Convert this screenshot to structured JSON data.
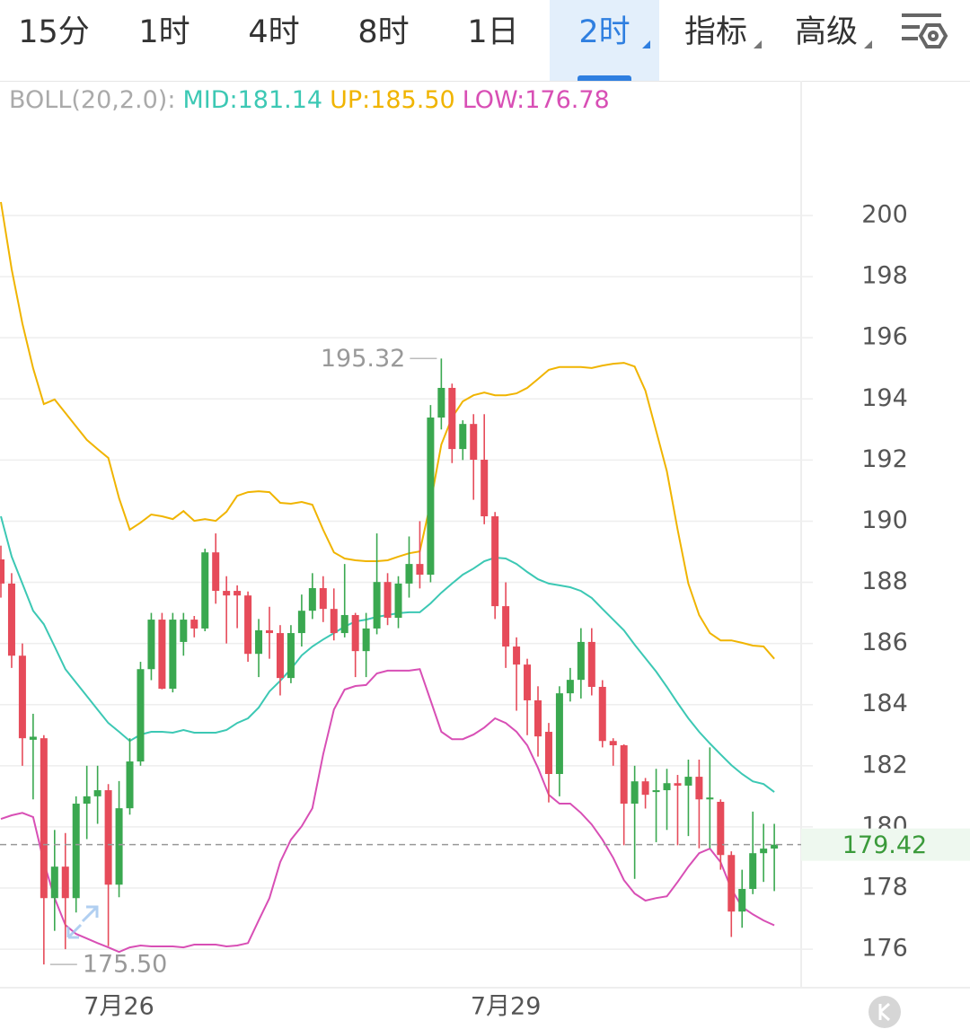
{
  "tabs": [
    "15分",
    "1时",
    "4时",
    "8时",
    "1日",
    "2时",
    "指标",
    "高级"
  ],
  "active_tab": 5,
  "dropdown_tabs": [
    5,
    6,
    7
  ],
  "chart_data": {
    "type": "candlestick",
    "indicator": "BOLL(20,2.0):",
    "categories": [
      null,
      null,
      null,
      null,
      null,
      null,
      null,
      null,
      null,
      null,
      null,
      "7月26",
      null,
      null,
      null,
      null,
      null,
      null,
      null,
      null,
      null,
      null,
      null,
      null,
      null,
      null,
      null,
      null,
      null,
      null,
      null,
      null,
      null,
      null,
      null,
      null,
      null,
      null,
      null,
      null,
      null,
      null,
      null,
      null,
      null,
      null,
      null,
      "7月29",
      null,
      null,
      null,
      null,
      null,
      null,
      null,
      null,
      null,
      null,
      null,
      null,
      null,
      null,
      null,
      null,
      null,
      null,
      null,
      null,
      null,
      null,
      null,
      null,
      null
    ],
    "open": [
      188.75,
      187.96,
      185.6,
      182.85,
      182.9,
      177.67,
      178.7,
      177.67,
      180.76,
      181.0,
      181.2,
      178.11,
      180.61,
      182.14,
      185.16,
      186.78,
      184.52,
      186.05,
      186.78,
      186.49,
      188.98,
      187.72,
      187.72,
      187.57,
      185.66,
      186.43,
      186.34,
      184.87,
      186.34,
      187.07,
      187.81,
      187.13,
      186.34,
      186.93,
      185.75,
      186.49,
      188.01,
      186.84,
      187.96,
      188.6,
      188.25,
      193.39,
      194.36,
      192.36,
      193.18,
      192.01,
      190.16,
      187.22,
      185.9,
      185.31,
      184.14,
      183.11,
      181.73,
      184.37,
      184.81,
      186.05,
      184.58,
      182.81,
      182.67,
      180.76,
      181.49,
      181.14,
      181.2,
      181.43,
      181.35,
      181.64,
      180.9,
      180.82,
      179.08,
      177.23,
      177.97,
      179.14,
      179.29
    ],
    "close": [
      187.96,
      185.6,
      182.9,
      182.95,
      177.67,
      178.7,
      177.67,
      180.76,
      181.0,
      181.2,
      178.11,
      180.61,
      182.14,
      185.16,
      186.78,
      184.52,
      186.78,
      186.78,
      186.49,
      188.98,
      187.72,
      187.57,
      187.57,
      185.66,
      186.43,
      186.34,
      184.87,
      186.34,
      187.07,
      187.81,
      187.13,
      186.34,
      186.93,
      185.75,
      186.49,
      188.01,
      186.84,
      187.96,
      188.6,
      188.25,
      193.39,
      194.36,
      192.36,
      193.18,
      192.01,
      190.16,
      187.22,
      185.9,
      185.31,
      184.14,
      182.96,
      181.73,
      184.37,
      184.81,
      186.05,
      184.58,
      182.81,
      182.67,
      180.76,
      181.49,
      181.05,
      181.2,
      181.43,
      181.35,
      181.64,
      180.9,
      180.96,
      179.08,
      177.23,
      177.97,
      179.14,
      179.29,
      179.42
    ],
    "high": [
      189.2,
      188.3,
      186.0,
      183.7,
      183.0,
      179.9,
      179.8,
      181.0,
      182.0,
      182.0,
      181.4,
      181.5,
      182.9,
      185.4,
      187.0,
      187.0,
      187.0,
      187.0,
      186.9,
      189.1,
      189.6,
      188.2,
      187.9,
      187.7,
      186.8,
      187.2,
      186.6,
      186.6,
      187.6,
      188.3,
      188.2,
      187.8,
      188.6,
      187.0,
      187.0,
      189.6,
      188.3,
      188.2,
      189.5,
      190.0,
      193.8,
      195.32,
      194.5,
      193.3,
      193.5,
      193.5,
      190.3,
      188.0,
      186.2,
      185.5,
      184.6,
      183.4,
      184.6,
      185.2,
      186.5,
      186.5,
      184.8,
      182.9,
      182.7,
      182.0,
      181.6,
      181.9,
      181.9,
      181.7,
      182.2,
      182.2,
      182.6,
      180.9,
      179.2,
      178.6,
      180.5,
      180.1,
      180.1
    ],
    "low": [
      187.5,
      185.2,
      182.0,
      180.9,
      175.5,
      176.6,
      176.0,
      177.2,
      179.6,
      180.1,
      176.1,
      177.7,
      180.4,
      182.0,
      184.8,
      184.5,
      184.4,
      185.6,
      186.2,
      186.4,
      187.3,
      186.0,
      186.5,
      185.4,
      184.9,
      185.5,
      184.3,
      184.7,
      185.9,
      186.8,
      186.7,
      186.1,
      186.2,
      184.9,
      184.9,
      186.3,
      186.6,
      186.5,
      187.5,
      187.8,
      188.0,
      193.0,
      191.9,
      192.0,
      190.7,
      189.9,
      186.8,
      185.2,
      183.8,
      183.0,
      182.3,
      180.8,
      181.0,
      184.1,
      184.2,
      184.3,
      182.6,
      182.0,
      179.4,
      178.3,
      180.6,
      179.5,
      179.9,
      179.4,
      179.7,
      179.3,
      179.3,
      178.6,
      176.4,
      176.7,
      177.8,
      178.2,
      177.9
    ],
    "up_color": "#3aa850",
    "down_color": "#e64b5a",
    "series": [
      {
        "name": "MID",
        "label": "MID:181.14",
        "color": "#3cc8b4",
        "values": [
          190.16,
          188.84,
          187.96,
          187.07,
          186.63,
          185.9,
          185.16,
          184.72,
          184.28,
          183.84,
          183.4,
          183.11,
          182.81,
          183.02,
          183.11,
          183.11,
          183.08,
          183.17,
          183.08,
          183.08,
          183.08,
          183.17,
          183.4,
          183.55,
          183.9,
          184.43,
          184.78,
          185.16,
          185.61,
          185.9,
          186.13,
          186.34,
          186.55,
          186.72,
          186.78,
          186.87,
          186.93,
          186.99,
          187.02,
          187.02,
          187.31,
          187.66,
          187.96,
          188.25,
          188.45,
          188.69,
          188.81,
          188.78,
          188.6,
          188.34,
          188.1,
          187.96,
          187.9,
          187.84,
          187.72,
          187.49,
          187.13,
          186.78,
          186.43,
          185.96,
          185.52,
          185.08,
          184.58,
          184.05,
          183.55,
          183.11,
          182.73,
          182.37,
          182.02,
          181.73,
          181.49,
          181.4,
          181.14
        ]
      },
      {
        "name": "UP",
        "label": "UP:185.50",
        "color": "#f0b400",
        "values": [
          200.44,
          198.24,
          196.47,
          195.0,
          193.83,
          193.98,
          193.54,
          193.1,
          192.66,
          192.36,
          192.07,
          190.75,
          189.72,
          189.95,
          190.22,
          190.16,
          190.07,
          190.33,
          190.01,
          190.07,
          190.01,
          190.31,
          190.83,
          190.95,
          190.98,
          190.95,
          190.6,
          190.57,
          190.63,
          190.54,
          189.72,
          188.98,
          188.78,
          188.72,
          188.69,
          188.69,
          188.72,
          188.84,
          188.95,
          189.01,
          190.6,
          192.51,
          193.39,
          193.92,
          194.12,
          194.21,
          194.12,
          194.12,
          194.18,
          194.36,
          194.65,
          194.95,
          195.04,
          195.04,
          195.04,
          195.01,
          195.09,
          195.15,
          195.18,
          195.06,
          194.27,
          192.95,
          191.63,
          189.72,
          187.96,
          186.93,
          186.34,
          186.1,
          186.1,
          186.02,
          185.93,
          185.9,
          185.5
        ]
      },
      {
        "name": "LOW",
        "label": "LOW:176.78",
        "color": "#d84fb5",
        "values": [
          180.26,
          180.38,
          180.46,
          180.32,
          178.85,
          177.67,
          176.79,
          176.5,
          176.35,
          176.2,
          176.06,
          175.91,
          176.06,
          176.12,
          176.09,
          176.09,
          176.09,
          176.06,
          176.15,
          176.15,
          176.15,
          176.09,
          176.12,
          176.2,
          176.94,
          177.67,
          178.85,
          179.58,
          180.02,
          180.61,
          182.37,
          183.84,
          184.49,
          184.61,
          184.64,
          185.02,
          185.11,
          185.11,
          185.11,
          185.16,
          184.14,
          183.11,
          182.87,
          182.87,
          183.02,
          183.25,
          183.55,
          183.4,
          183.11,
          182.67,
          181.93,
          181.05,
          180.76,
          180.76,
          180.46,
          180.08,
          179.58,
          178.99,
          178.26,
          177.82,
          177.59,
          177.67,
          177.73,
          178.2,
          178.7,
          179.14,
          179.29,
          178.85,
          177.97,
          177.38,
          177.14,
          176.94,
          176.78
        ]
      }
    ],
    "ylim": [
      174.74,
      203.23
    ],
    "yticks": [
      176,
      178,
      180,
      182,
      184,
      186,
      188,
      190,
      192,
      194,
      196,
      198,
      200
    ],
    "grid": true,
    "last_price": {
      "value": 179.42,
      "label": "179.42"
    },
    "annotations": [
      {
        "value": 195.32,
        "label": "195.32",
        "index": 41
      },
      {
        "value": 175.5,
        "label": "175.50",
        "index": 4
      }
    ]
  }
}
